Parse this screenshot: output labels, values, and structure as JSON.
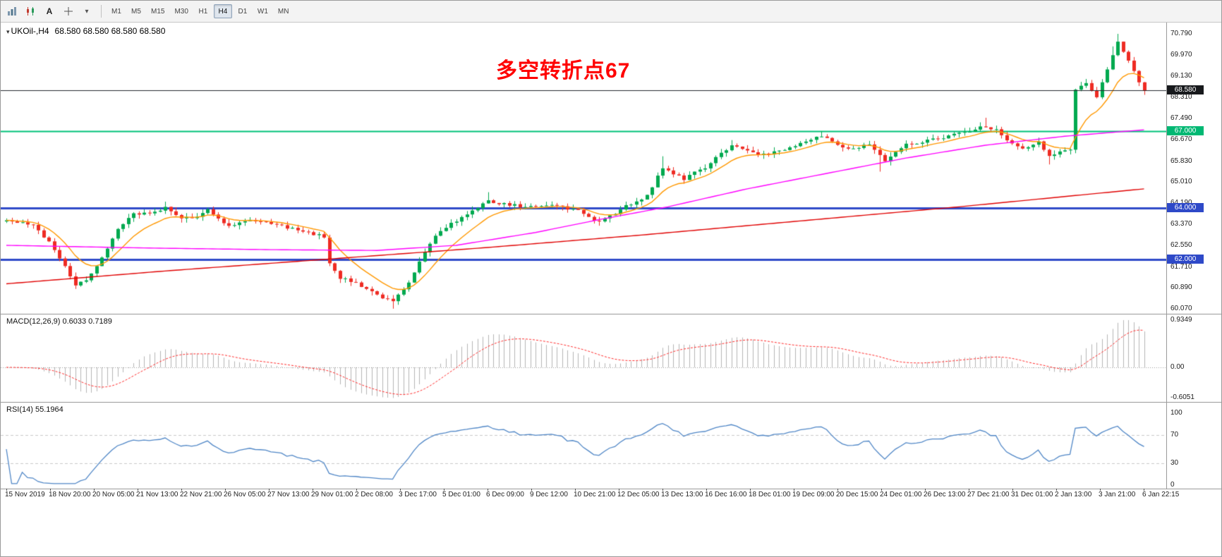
{
  "toolbar": {
    "text_tool_label": "A",
    "timeframes": [
      "M1",
      "M5",
      "M15",
      "M30",
      "H1",
      "H4",
      "D1",
      "W1",
      "MN"
    ],
    "active_timeframe": "H4",
    "icons": [
      "bar-chart",
      "candlestick-chart",
      "crosshair",
      "caret-down"
    ]
  },
  "chart": {
    "title": "UKOil-,H4",
    "ohlc": "68.580 68.580 68.580 68.580",
    "annotation": "多空转折点67",
    "price_axis_labels": [
      "70.790",
      "69.970",
      "69.130",
      "68.310",
      "67.490",
      "66.670",
      "65.830",
      "65.010",
      "64.190",
      "63.370",
      "62.550",
      "61.710",
      "60.890",
      "60.070"
    ],
    "hlines": [
      {
        "value": 68.58,
        "label": "68.580",
        "type": "current-price",
        "color": "#24282e",
        "width": 1,
        "badge_bg": "#17191c"
      },
      {
        "value": 67.0,
        "label": "67.000",
        "type": "level",
        "color": "#00c278",
        "width": 2,
        "badge_bg": "#00b873"
      },
      {
        "value": 64.0,
        "label": "64.000",
        "type": "level",
        "color": "#2e49c8",
        "width": 3,
        "badge_bg": "#2e49c8"
      },
      {
        "value": 62.0,
        "label": "62.000",
        "type": "level",
        "color": "#2e49c8",
        "width": 3,
        "badge_bg": "#2e49c8"
      }
    ]
  },
  "macd": {
    "label": "MACD(12,26,9) 0.6033 0.7189",
    "params": [
      12,
      26,
      9
    ],
    "values": [
      0.6033,
      0.7189
    ],
    "axis_labels": [
      "0.9349",
      "0.00",
      "-0.6051"
    ]
  },
  "rsi": {
    "label": "RSI(14) 55.1964",
    "period": 14,
    "value": 55.1964,
    "levels": [
      70,
      30
    ],
    "axis_labels": [
      "100",
      "70",
      "30",
      "0"
    ]
  },
  "time_axis": [
    "15 Nov 2019",
    "18 Nov 20:00",
    "20 Nov 05:00",
    "21 Nov 13:00",
    "22 Nov 21:00",
    "26 Nov 05:00",
    "27 Nov 13:00",
    "29 Nov 01:00",
    "2 Dec 08:00",
    "3 Dec 17:00",
    "5 Dec 01:00",
    "6 Dec 09:00",
    "9 Dec 12:00",
    "10 Dec 21:00",
    "12 Dec 05:00",
    "13 Dec 13:00",
    "16 Dec 16:00",
    "18 Dec 01:00",
    "19 Dec 09:00",
    "20 Dec 15:00",
    "24 Dec 01:00",
    "26 Dec 13:00",
    "27 Dec 21:00",
    "31 Dec 01:00",
    "2 Jan 13:00",
    "3 Jan 21:00",
    "6 Jan 22:15"
  ],
  "chart_data": {
    "type": "candlestick",
    "symbol": "UKOil-",
    "timeframe": "H4",
    "last_price": 68.58,
    "price_range": [
      60.07,
      70.79
    ],
    "candle_count": 216,
    "close_anchors": [
      [
        0,
        63.55
      ],
      [
        3,
        63.45
      ],
      [
        5,
        63.3
      ],
      [
        8,
        62.7
      ],
      [
        11,
        61.7
      ],
      [
        13,
        61.0
      ],
      [
        15,
        61.15
      ],
      [
        17,
        61.7
      ],
      [
        19,
        62.4
      ],
      [
        21,
        63.2
      ],
      [
        24,
        63.75
      ],
      [
        27,
        63.85
      ],
      [
        30,
        64.0
      ],
      [
        33,
        63.55
      ],
      [
        36,
        63.7
      ],
      [
        38,
        63.9
      ],
      [
        42,
        63.25
      ],
      [
        46,
        63.55
      ],
      [
        51,
        63.35
      ],
      [
        56,
        63.1
      ],
      [
        60,
        62.9
      ],
      [
        61,
        61.8
      ],
      [
        63,
        61.3
      ],
      [
        66,
        61.05
      ],
      [
        70,
        60.6
      ],
      [
        73,
        60.35
      ],
      [
        76,
        61.1
      ],
      [
        78,
        61.9
      ],
      [
        80,
        62.6
      ],
      [
        82,
        63.15
      ],
      [
        86,
        63.6
      ],
      [
        89,
        64.0
      ],
      [
        91,
        64.3
      ],
      [
        94,
        64.15
      ],
      [
        98,
        64.05
      ],
      [
        103,
        64.1
      ],
      [
        108,
        63.9
      ],
      [
        111,
        63.45
      ],
      [
        113,
        63.55
      ],
      [
        116,
        63.95
      ],
      [
        121,
        64.5
      ],
      [
        124,
        65.6
      ],
      [
        126,
        65.35
      ],
      [
        128,
        65.15
      ],
      [
        132,
        65.6
      ],
      [
        135,
        66.1
      ],
      [
        137,
        66.5
      ],
      [
        140,
        66.2
      ],
      [
        143,
        66.1
      ],
      [
        147,
        66.3
      ],
      [
        151,
        66.6
      ],
      [
        154,
        66.8
      ],
      [
        157,
        66.45
      ],
      [
        160,
        66.3
      ],
      [
        163,
        66.5
      ],
      [
        165,
        66.1
      ],
      [
        166,
        65.85
      ],
      [
        168,
        66.2
      ],
      [
        170,
        66.45
      ],
      [
        173,
        66.6
      ],
      [
        178,
        66.8
      ],
      [
        182,
        67.0
      ],
      [
        185,
        67.2
      ],
      [
        187,
        67.05
      ],
      [
        189,
        66.6
      ],
      [
        192,
        66.35
      ],
      [
        195,
        66.55
      ],
      [
        197,
        66.05
      ],
      [
        199,
        66.2
      ],
      [
        201,
        66.3
      ],
      [
        202,
        68.6
      ],
      [
        204,
        68.9
      ],
      [
        205,
        68.55
      ],
      [
        206,
        68.3
      ],
      [
        207,
        68.85
      ],
      [
        208,
        69.35
      ],
      [
        209,
        69.9
      ],
      [
        210,
        70.45
      ],
      [
        211,
        70.1
      ],
      [
        212,
        69.7
      ],
      [
        213,
        69.3
      ],
      [
        214,
        68.85
      ],
      [
        215,
        68.58
      ]
    ],
    "noise": {
      "seed": 20200106,
      "close_amp": 0.06,
      "wick_amp": 0.17
    },
    "overrides": {
      "high": {
        "30": 64.25,
        "91": 64.62,
        "124": 66.02,
        "137": 66.65,
        "154": 67.0,
        "185": 67.52,
        "209": 70.3,
        "210": 70.79
      },
      "low": {
        "13": 60.85,
        "73": 60.08,
        "165": 65.42,
        "197": 65.7
      }
    },
    "colors": {
      "up": "#00a94f",
      "down": "#ee2b23",
      "macd_bar": "#b4b4b4",
      "macd_signal": "#ff2a2a",
      "rsi_line": "#4f86c6"
    },
    "moving_averages": [
      {
        "name": "ma-fast",
        "color": "#ff9800",
        "type": "ema",
        "period": 10
      },
      {
        "name": "ma-mid",
        "color": "#ff00ff",
        "type": "anchors",
        "anchors": [
          [
            0,
            62.55
          ],
          [
            25,
            62.45
          ],
          [
            50,
            62.38
          ],
          [
            70,
            62.35
          ],
          [
            85,
            62.55
          ],
          [
            100,
            63.05
          ],
          [
            112,
            63.55
          ],
          [
            125,
            64.05
          ],
          [
            140,
            64.75
          ],
          [
            155,
            65.35
          ],
          [
            170,
            65.95
          ],
          [
            185,
            66.45
          ],
          [
            200,
            66.8
          ],
          [
            215,
            67.05
          ]
        ]
      },
      {
        "name": "ma-slow",
        "color": "#e00000",
        "type": "anchors",
        "anchors": [
          [
            0,
            61.05
          ],
          [
            30,
            61.55
          ],
          [
            60,
            62.0
          ],
          [
            90,
            62.45
          ],
          [
            120,
            62.95
          ],
          [
            150,
            63.5
          ],
          [
            180,
            64.05
          ],
          [
            200,
            64.45
          ],
          [
            215,
            64.75
          ]
        ]
      }
    ]
  }
}
